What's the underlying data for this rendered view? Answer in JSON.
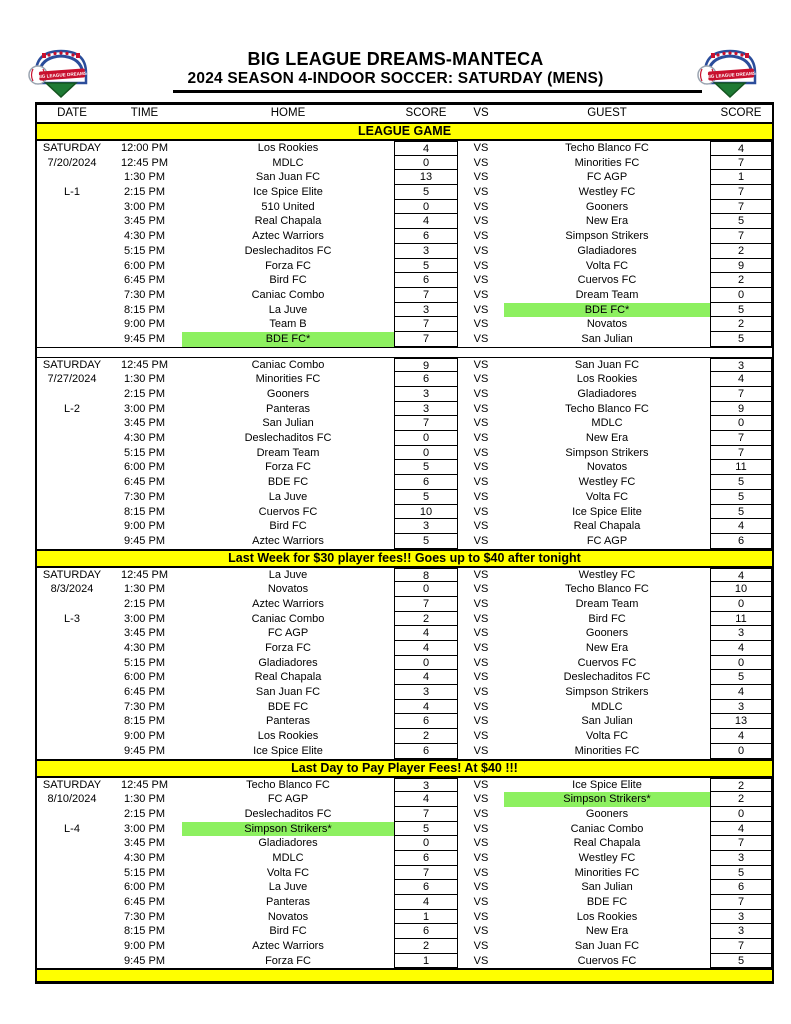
{
  "header": {
    "title": "BIG LEAGUE DREAMS-MANTECA",
    "subtitle": "2024 SEASON 4-INDOOR SOCCER: SATURDAY (MENS)",
    "logo_alt": "Big League Dreams stadium logo"
  },
  "columns": [
    "DATE",
    "TIME",
    "HOME",
    "SCORE",
    "VS",
    "GUEST",
    "SCORE"
  ],
  "league_banner": "LEAGUE GAME",
  "vs_label": "VS",
  "colors": {
    "banner_yellow": "#FFFF00",
    "highlight_green": "#8DF060"
  },
  "blocks": [
    {
      "day": "SATURDAY",
      "date": "7/20/2024",
      "league": "L-1",
      "gap_below": true,
      "banner_below": null,
      "games": [
        {
          "t": "12:00 PM",
          "home": "Los Rookies",
          "hs": "4",
          "guest": "Techo Blanco FC",
          "gs": "4",
          "hHl": false,
          "gHl": false
        },
        {
          "t": "12:45 PM",
          "home": "MDLC",
          "hs": "0",
          "guest": "Minorities FC",
          "gs": "7",
          "hHl": false,
          "gHl": false
        },
        {
          "t": "1:30 PM",
          "home": "San Juan FC",
          "hs": "13",
          "guest": "FC AGP",
          "gs": "1",
          "hHl": false,
          "gHl": false
        },
        {
          "t": "2:15 PM",
          "home": "Ice Spice Elite",
          "hs": "5",
          "guest": "Westley FC",
          "gs": "7",
          "hHl": false,
          "gHl": false
        },
        {
          "t": "3:00 PM",
          "home": "510 United",
          "hs": "0",
          "guest": "Gooners",
          "gs": "7",
          "hHl": false,
          "gHl": false
        },
        {
          "t": "3:45 PM",
          "home": "Real Chapala",
          "hs": "4",
          "guest": "New Era",
          "gs": "5",
          "hHl": false,
          "gHl": false
        },
        {
          "t": "4:30 PM",
          "home": "Aztec Warriors",
          "hs": "6",
          "guest": "Simpson Strikers",
          "gs": "7",
          "hHl": false,
          "gHl": false
        },
        {
          "t": "5:15 PM",
          "home": "Deslechaditos FC",
          "hs": "3",
          "guest": "Gladiadores",
          "gs": "2",
          "hHl": false,
          "gHl": false
        },
        {
          "t": "6:00 PM",
          "home": "Forza FC",
          "hs": "5",
          "guest": "Volta FC",
          "gs": "9",
          "hHl": false,
          "gHl": false
        },
        {
          "t": "6:45 PM",
          "home": "Bird FC",
          "hs": "6",
          "guest": "Cuervos FC",
          "gs": "2",
          "hHl": false,
          "gHl": false
        },
        {
          "t": "7:30 PM",
          "home": "Caniac Combo",
          "hs": "7",
          "guest": "Dream Team",
          "gs": "0",
          "hHl": false,
          "gHl": false
        },
        {
          "t": "8:15 PM",
          "home": "La Juve",
          "hs": "3",
          "guest": "BDE FC*",
          "gs": "5",
          "hHl": false,
          "gHl": true
        },
        {
          "t": "9:00 PM",
          "home": "Team B",
          "hs": "7",
          "guest": "Novatos",
          "gs": "2",
          "hHl": false,
          "gHl": false
        },
        {
          "t": "9:45 PM",
          "home": "BDE FC*",
          "hs": "7",
          "guest": "San Julian",
          "gs": "5",
          "hHl": true,
          "gHl": false
        }
      ]
    },
    {
      "day": "SATURDAY",
      "date": "7/27/2024",
      "league": "L-2",
      "gap_below": false,
      "banner_below": "Last Week for $30 player fees!! Goes up to $40 after tonight",
      "games": [
        {
          "t": "12:45 PM",
          "home": "Caniac Combo",
          "hs": "9",
          "guest": "San Juan FC",
          "gs": "3",
          "hHl": false,
          "gHl": false
        },
        {
          "t": "1:30 PM",
          "home": "Minorities FC",
          "hs": "6",
          "guest": "Los Rookies",
          "gs": "4",
          "hHl": false,
          "gHl": false
        },
        {
          "t": "2:15 PM",
          "home": "Gooners",
          "hs": "3",
          "guest": "Gladiadores",
          "gs": "7",
          "hHl": false,
          "gHl": false
        },
        {
          "t": "3:00 PM",
          "home": "Panteras",
          "hs": "3",
          "guest": "Techo Blanco FC",
          "gs": "9",
          "hHl": false,
          "gHl": false
        },
        {
          "t": "3:45 PM",
          "home": "San Julian",
          "hs": "7",
          "guest": "MDLC",
          "gs": "0",
          "hHl": false,
          "gHl": false
        },
        {
          "t": "4:30 PM",
          "home": "Deslechaditos FC",
          "hs": "0",
          "guest": "New Era",
          "gs": "7",
          "hHl": false,
          "gHl": false
        },
        {
          "t": "5:15 PM",
          "home": "Dream Team",
          "hs": "0",
          "guest": "Simpson Strikers",
          "gs": "7",
          "hHl": false,
          "gHl": false
        },
        {
          "t": "6:00 PM",
          "home": "Forza FC",
          "hs": "5",
          "guest": "Novatos",
          "gs": "11",
          "hHl": false,
          "gHl": false
        },
        {
          "t": "6:45 PM",
          "home": "BDE FC",
          "hs": "6",
          "guest": "Westley FC",
          "gs": "5",
          "hHl": false,
          "gHl": false
        },
        {
          "t": "7:30 PM",
          "home": "La Juve",
          "hs": "5",
          "guest": "Volta FC",
          "gs": "5",
          "hHl": false,
          "gHl": false
        },
        {
          "t": "8:15 PM",
          "home": "Cuervos FC",
          "hs": "10",
          "guest": "Ice Spice Elite",
          "gs": "5",
          "hHl": false,
          "gHl": false
        },
        {
          "t": "9:00 PM",
          "home": "Bird FC",
          "hs": "3",
          "guest": "Real Chapala",
          "gs": "4",
          "hHl": false,
          "gHl": false
        },
        {
          "t": "9:45 PM",
          "home": "Aztec Warriors",
          "hs": "5",
          "guest": "FC AGP",
          "gs": "6",
          "hHl": false,
          "gHl": false
        }
      ]
    },
    {
      "day": "SATURDAY",
      "date": "8/3/2024",
      "league": "L-3",
      "gap_below": false,
      "banner_below": "Last Day to Pay Player Fees! At $40 !!!",
      "games": [
        {
          "t": "12:45 PM",
          "home": "La Juve",
          "hs": "8",
          "guest": "Westley FC",
          "gs": "4",
          "hHl": false,
          "gHl": false
        },
        {
          "t": "1:30 PM",
          "home": "Novatos",
          "hs": "0",
          "guest": "Techo Blanco FC",
          "gs": "10",
          "hHl": false,
          "gHl": false
        },
        {
          "t": "2:15 PM",
          "home": "Aztec Warriors",
          "hs": "7",
          "guest": "Dream Team",
          "gs": "0",
          "hHl": false,
          "gHl": false
        },
        {
          "t": "3:00 PM",
          "home": "Caniac Combo",
          "hs": "2",
          "guest": "Bird FC",
          "gs": "11",
          "hHl": false,
          "gHl": false
        },
        {
          "t": "3:45 PM",
          "home": "FC AGP",
          "hs": "4",
          "guest": "Gooners",
          "gs": "3",
          "hHl": false,
          "gHl": false
        },
        {
          "t": "4:30 PM",
          "home": "Forza FC",
          "hs": "4",
          "guest": "New Era",
          "gs": "4",
          "hHl": false,
          "gHl": false
        },
        {
          "t": "5:15 PM",
          "home": "Gladiadores",
          "hs": "0",
          "guest": "Cuervos FC",
          "gs": "0",
          "hHl": false,
          "gHl": false
        },
        {
          "t": "6:00 PM",
          "home": "Real Chapala",
          "hs": "4",
          "guest": "Deslechaditos FC",
          "gs": "5",
          "hHl": false,
          "gHl": false
        },
        {
          "t": "6:45 PM",
          "home": "San Juan FC",
          "hs": "3",
          "guest": "Simpson Strikers",
          "gs": "4",
          "hHl": false,
          "gHl": false
        },
        {
          "t": "7:30 PM",
          "home": "BDE FC",
          "hs": "4",
          "guest": "MDLC",
          "gs": "3",
          "hHl": false,
          "gHl": false
        },
        {
          "t": "8:15 PM",
          "home": "Panteras",
          "hs": "6",
          "guest": "San Julian",
          "gs": "13",
          "hHl": false,
          "gHl": false
        },
        {
          "t": "9:00 PM",
          "home": "Los Rookies",
          "hs": "2",
          "guest": "Volta FC",
          "gs": "4",
          "hHl": false,
          "gHl": false
        },
        {
          "t": "9:45 PM",
          "home": "Ice Spice Elite",
          "hs": "6",
          "guest": "Minorities FC",
          "gs": "0",
          "hHl": false,
          "gHl": false
        }
      ]
    },
    {
      "day": "SATURDAY",
      "date": "8/10/2024",
      "league": "L-4",
      "gap_below": false,
      "banner_below": "",
      "games": [
        {
          "t": "12:45 PM",
          "home": "Techo Blanco FC",
          "hs": "3",
          "guest": "Ice Spice Elite",
          "gs": "2",
          "hHl": false,
          "gHl": false
        },
        {
          "t": "1:30 PM",
          "home": "FC AGP",
          "hs": "4",
          "guest": "Simpson Strikers*",
          "gs": "2",
          "hHl": false,
          "gHl": true
        },
        {
          "t": "2:15 PM",
          "home": "Deslechaditos FC",
          "hs": "7",
          "guest": "Gooners",
          "gs": "0",
          "hHl": false,
          "gHl": false
        },
        {
          "t": "3:00 PM",
          "home": "Simpson Strikers*",
          "hs": "5",
          "guest": "Caniac Combo",
          "gs": "4",
          "hHl": true,
          "gHl": false
        },
        {
          "t": "3:45 PM",
          "home": "Gladiadores",
          "hs": "0",
          "guest": "Real Chapala",
          "gs": "7",
          "hHl": false,
          "gHl": false
        },
        {
          "t": "4:30 PM",
          "home": "MDLC",
          "hs": "6",
          "guest": "Westley FC",
          "gs": "3",
          "hHl": false,
          "gHl": false
        },
        {
          "t": "5:15 PM",
          "home": "Volta FC",
          "hs": "7",
          "guest": "Minorities FC",
          "gs": "5",
          "hHl": false,
          "gHl": false
        },
        {
          "t": "6:00 PM",
          "home": "La Juve",
          "hs": "6",
          "guest": "San Julian",
          "gs": "6",
          "hHl": false,
          "gHl": false
        },
        {
          "t": "6:45 PM",
          "home": "Panteras",
          "hs": "4",
          "guest": "BDE FC",
          "gs": "7",
          "hHl": false,
          "gHl": false
        },
        {
          "t": "7:30 PM",
          "home": "Novatos",
          "hs": "1",
          "guest": "Los Rookies",
          "gs": "3",
          "hHl": false,
          "gHl": false
        },
        {
          "t": "8:15 PM",
          "home": "Bird FC",
          "hs": "6",
          "guest": "New Era",
          "gs": "3",
          "hHl": false,
          "gHl": false
        },
        {
          "t": "9:00 PM",
          "home": "Aztec Warriors",
          "hs": "2",
          "guest": "San Juan FC",
          "gs": "7",
          "hHl": false,
          "gHl": false
        },
        {
          "t": "9:45 PM",
          "home": "Forza FC",
          "hs": "1",
          "guest": "Cuervos FC",
          "gs": "5",
          "hHl": false,
          "gHl": false
        }
      ]
    }
  ]
}
